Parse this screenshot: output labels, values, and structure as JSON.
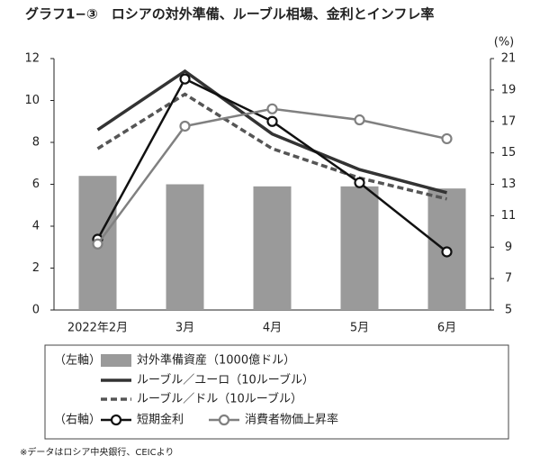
{
  "chart_data": {
    "type": "combo",
    "title": "グラフ1−③　ロシアの対外準備、ルーブル相場、金利とインフレ率",
    "y2_unit": "(%)",
    "categories": [
      "2022年2月",
      "3月",
      "4月",
      "5月",
      "6月"
    ],
    "ylim": [
      0,
      12
    ],
    "yticks": [
      0,
      2,
      4,
      6,
      8,
      10,
      12
    ],
    "y2lim": [
      5,
      21
    ],
    "y2ticks": [
      5,
      7,
      9,
      11,
      13,
      15,
      17,
      19,
      21
    ],
    "legend_group_labels": [
      "（左軸）",
      "（右軸）"
    ],
    "series": [
      {
        "name": "対外準備資産（1000億ドル）",
        "type": "bar",
        "color": "#9a9a9a",
        "values": [
          6.4,
          6.0,
          5.9,
          5.9,
          5.8
        ]
      },
      {
        "name": "ルーブル／ユーロ（10ルーブル）",
        "type": "line",
        "color": "#333333",
        "values": [
          8.6,
          11.4,
          8.4,
          6.7,
          5.6
        ]
      },
      {
        "name": "ルーブル／ドル（10ルーブル）",
        "type": "line",
        "color": "#555555",
        "dash": true,
        "values": [
          7.7,
          10.3,
          7.7,
          6.3,
          5.3
        ]
      },
      {
        "name": "短期金利",
        "type": "line",
        "axis": "y2",
        "color": "#111111",
        "marker": "circle",
        "values": [
          9.5,
          19.7,
          17.0,
          13.1,
          8.7
        ]
      },
      {
        "name": "消費者物価上昇率",
        "type": "line",
        "axis": "y2",
        "color": "#808080",
        "marker": "circle",
        "values": [
          9.2,
          16.7,
          17.8,
          17.1,
          15.9
        ]
      }
    ],
    "note": "※データはロシア中央銀行、CEICより"
  }
}
